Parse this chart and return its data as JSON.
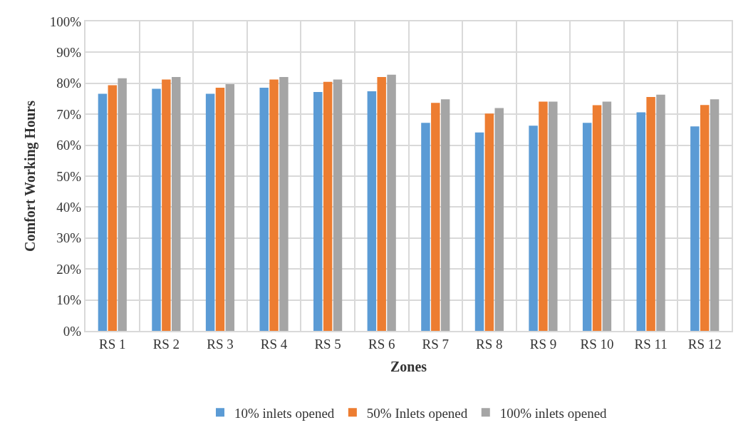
{
  "chart_data": {
    "type": "bar",
    "xlabel": "Zones",
    "ylabel": "Comfort Working Hours",
    "categories": [
      "RS 1",
      "RS 2",
      "RS 3",
      "RS 4",
      "RS 5",
      "RS 6",
      "RS 7",
      "RS 8",
      "RS 9",
      "RS 10",
      "RS 11",
      "RS 12"
    ],
    "series": [
      {
        "name": "10% inlets opened",
        "color": "#5b9bd5",
        "values": [
          76.6,
          78.2,
          76.6,
          78.6,
          77.2,
          77.4,
          67.2,
          64.1,
          66.3,
          67.2,
          70.6,
          66.1
        ]
      },
      {
        "name": "50% Inlets opened",
        "color": "#ed7d31",
        "values": [
          79.4,
          81.2,
          78.6,
          81.2,
          80.5,
          82.0,
          73.7,
          70.2,
          74.1,
          72.9,
          75.6,
          73.0
        ]
      },
      {
        "name": "100% inlets opened",
        "color": "#a5a5a5",
        "values": [
          81.6,
          82.0,
          79.7,
          82.0,
          81.2,
          82.8,
          74.8,
          72.0,
          74.1,
          74.1,
          76.3,
          74.8
        ]
      }
    ],
    "ylim": [
      0,
      100
    ],
    "yticks": [
      {
        "value": 0,
        "label": "0%"
      },
      {
        "value": 10,
        "label": "10%"
      },
      {
        "value": 20,
        "label": "20%"
      },
      {
        "value": 30,
        "label": "30%"
      },
      {
        "value": 40,
        "label": "40%"
      },
      {
        "value": 50,
        "label": "50%"
      },
      {
        "value": 60,
        "label": "60%"
      },
      {
        "value": 70,
        "label": "70%"
      },
      {
        "value": 80,
        "label": "80%"
      },
      {
        "value": 90,
        "label": "90%"
      },
      {
        "value": 100,
        "label": "100%"
      }
    ],
    "grid": true,
    "legend": "bottom"
  }
}
